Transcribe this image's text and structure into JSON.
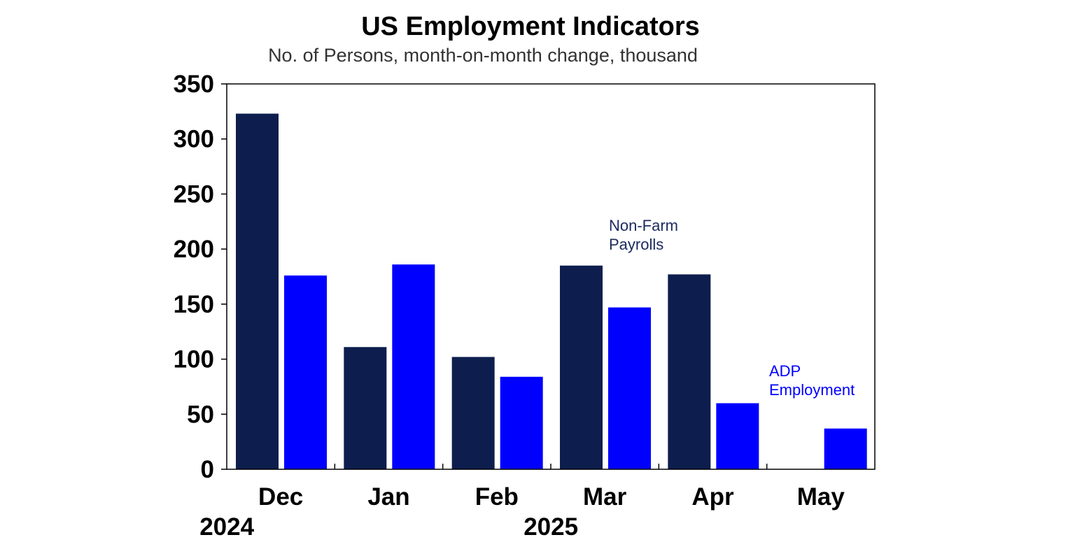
{
  "chart_data": {
    "type": "bar",
    "title": "US Employment Indicators",
    "subtitle": "No. of Persons, month-on-month change, thousand",
    "categories": [
      "Dec",
      "Jan",
      "Feb",
      "Mar",
      "Apr",
      "May"
    ],
    "year_labels": [
      {
        "text": "2024",
        "category": "Dec"
      },
      {
        "text": "2025",
        "category": "Mar"
      }
    ],
    "series": [
      {
        "name": "Non-Farm\nPayrolls",
        "color": "#0d1e4e",
        "values": [
          323,
          111,
          102,
          185,
          177,
          null
        ]
      },
      {
        "name": "ADP\nEmployment",
        "color": "#0000ff",
        "values": [
          176,
          186,
          84,
          147,
          60,
          37
        ]
      }
    ],
    "xlabel": "",
    "ylabel": "",
    "ylim": [
      0,
      350
    ],
    "yticks": [
      0,
      50,
      100,
      150,
      200,
      250,
      300,
      350
    ],
    "grid": false,
    "legend": "inline-labels"
  }
}
